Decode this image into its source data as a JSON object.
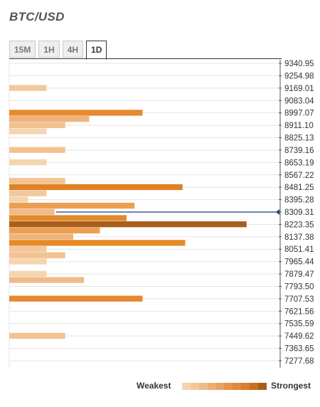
{
  "header": {
    "title": "BTC/USD"
  },
  "tabs": [
    {
      "label": "15M",
      "active": false
    },
    {
      "label": "1H",
      "active": false
    },
    {
      "label": "4H",
      "active": false
    },
    {
      "label": "1D",
      "active": true
    }
  ],
  "legend": {
    "weakest_label": "Weakest",
    "strongest_label": "Strongest",
    "scale_colors": [
      "#f5d5b0",
      "#f2c89c",
      "#efbb88",
      "#ecae74",
      "#e9a060",
      "#e6924c",
      "#e3873d",
      "#d97d2e",
      "#c86f22",
      "#a85e1a"
    ]
  },
  "chart_data": {
    "type": "bar",
    "orientation": "horizontal",
    "title": "BTC/USD",
    "current_price": 8309.31,
    "price_levels": [
      9340.95,
      9254.98,
      9169.01,
      9083.04,
      8997.07,
      8911.1,
      8825.13,
      8739.16,
      8653.19,
      8567.22,
      8481.25,
      8395.28,
      8309.31,
      8223.35,
      8137.38,
      8051.41,
      7965.44,
      7879.47,
      7793.5,
      7707.53,
      7621.56,
      7535.59,
      7449.62,
      7363.65,
      7277.68
    ],
    "tick_labels": [
      "9340.95",
      "9254.98",
      "9169.01",
      "9083.04",
      "8997.07",
      "8911.10",
      "8825.13",
      "8739.16",
      "8653.19",
      "8567.22",
      "8481.25",
      "8395.28",
      "8309.31",
      "8223.35",
      "8137.38",
      "8051.41",
      "7965.44",
      "7879.47",
      "7793.50",
      "7707.53",
      "7621.56",
      "7535.59",
      "7449.62",
      "7363.65",
      "7277.68"
    ],
    "value_scale": "strength 0-1",
    "bars": [
      {
        "price": 9169.01,
        "strength": 0.14,
        "color": "#f2c89c"
      },
      {
        "price": 8997.07,
        "strength": 0.5,
        "color": "#e6892f"
      },
      {
        "price": 8954.1,
        "strength": 0.3,
        "color": "#efb37a"
      },
      {
        "price": 8911.1,
        "strength": 0.21,
        "color": "#f2c290"
      },
      {
        "price": 8868.1,
        "strength": 0.14,
        "color": "#f5d5b0"
      },
      {
        "price": 8739.16,
        "strength": 0.21,
        "color": "#f2c290"
      },
      {
        "price": 8653.19,
        "strength": 0.14,
        "color": "#f5d5b0"
      },
      {
        "price": 8524.2,
        "strength": 0.21,
        "color": "#f2c290"
      },
      {
        "price": 8481.25,
        "strength": 0.65,
        "color": "#e08224"
      },
      {
        "price": 8438.3,
        "strength": 0.14,
        "color": "#f2c89c"
      },
      {
        "price": 8395.28,
        "strength": 0.07,
        "color": "#f5d5b0"
      },
      {
        "price": 8352.3,
        "strength": 0.47,
        "color": "#ec9f52"
      },
      {
        "price": 8309.31,
        "strength": 0.17,
        "color": "#efbb88"
      },
      {
        "price": 8266.3,
        "strength": 0.44,
        "color": "#e38a30"
      },
      {
        "price": 8223.35,
        "strength": 0.89,
        "color": "#a85e1a"
      },
      {
        "price": 8180.4,
        "strength": 0.34,
        "color": "#ec9f52"
      },
      {
        "price": 8137.38,
        "strength": 0.24,
        "color": "#efb37a"
      },
      {
        "price": 8094.4,
        "strength": 0.66,
        "color": "#e68a26"
      },
      {
        "price": 8051.41,
        "strength": 0.14,
        "color": "#f2c89c"
      },
      {
        "price": 8008.4,
        "strength": 0.21,
        "color": "#f2c290"
      },
      {
        "price": 7965.44,
        "strength": 0.14,
        "color": "#f5d5b0"
      },
      {
        "price": 7879.47,
        "strength": 0.14,
        "color": "#f5d5b0"
      },
      {
        "price": 7836.5,
        "strength": 0.28,
        "color": "#efbb88"
      },
      {
        "price": 7707.53,
        "strength": 0.5,
        "color": "#e6892f"
      },
      {
        "price": 7449.62,
        "strength": 0.21,
        "color": "#f2c290"
      }
    ],
    "grid": true
  }
}
